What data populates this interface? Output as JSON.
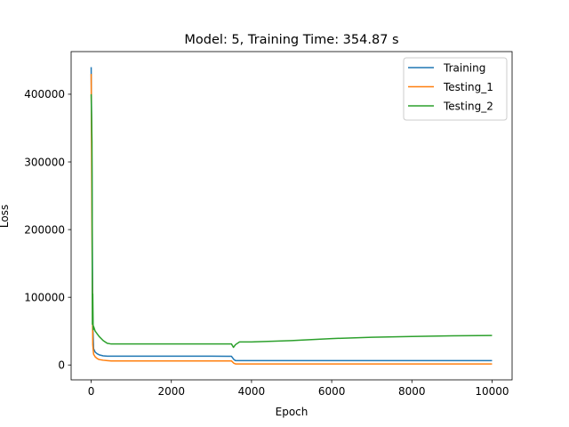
{
  "chart_data": {
    "type": "line",
    "title": "Model: 5, Training Time: 354.87 s",
    "xlabel": "Epoch",
    "ylabel": "Loss",
    "xlim": [
      -500,
      10500
    ],
    "ylim": [
      -22000,
      463000
    ],
    "xticks": [
      0,
      2000,
      4000,
      6000,
      8000,
      10000
    ],
    "yticks": [
      0,
      100000,
      200000,
      300000,
      400000
    ],
    "grid": false,
    "legend_position": "top-right",
    "series": [
      {
        "name": "Training",
        "color": "#1f77b4",
        "x": [
          0,
          20,
          40,
          60,
          100,
          150,
          200,
          300,
          400,
          500,
          1000,
          2000,
          3000,
          3500,
          3560,
          3600,
          4000,
          5000,
          6000,
          7000,
          8000,
          9000,
          10000
        ],
        "y": [
          440000,
          280000,
          60000,
          24000,
          19000,
          16500,
          15000,
          13500,
          13000,
          13000,
          13000,
          13000,
          13000,
          12800,
          8000,
          6500,
          6500,
          6500,
          6500,
          6500,
          6500,
          6500,
          6500
        ]
      },
      {
        "name": "Testing_1",
        "color": "#ff7f0e",
        "x": [
          0,
          20,
          40,
          60,
          100,
          150,
          200,
          300,
          400,
          500,
          1000,
          2000,
          3000,
          3500,
          3560,
          3600,
          4000,
          5000,
          6000,
          7000,
          8000,
          9000,
          10000
        ],
        "y": [
          430000,
          200000,
          30000,
          16000,
          12000,
          9500,
          8000,
          7000,
          6500,
          6000,
          6000,
          6000,
          6000,
          6000,
          2500,
          1500,
          1500,
          1500,
          1500,
          1500,
          1500,
          1500,
          1500
        ]
      },
      {
        "name": "Testing_2",
        "color": "#2ca02c",
        "x": [
          0,
          20,
          30,
          40,
          50,
          60,
          100,
          150,
          200,
          300,
          400,
          500,
          1000,
          2000,
          3000,
          3500,
          3550,
          3600,
          3700,
          4000,
          5000,
          6000,
          7000,
          8000,
          9000,
          10000
        ],
        "y": [
          400000,
          330000,
          60000,
          105000,
          52000,
          57000,
          50000,
          46000,
          42000,
          36000,
          32000,
          31000,
          31000,
          31000,
          31000,
          31000,
          26000,
          30000,
          34000,
          34000,
          36000,
          39000,
          41000,
          42000,
          43000,
          43500
        ]
      }
    ]
  }
}
